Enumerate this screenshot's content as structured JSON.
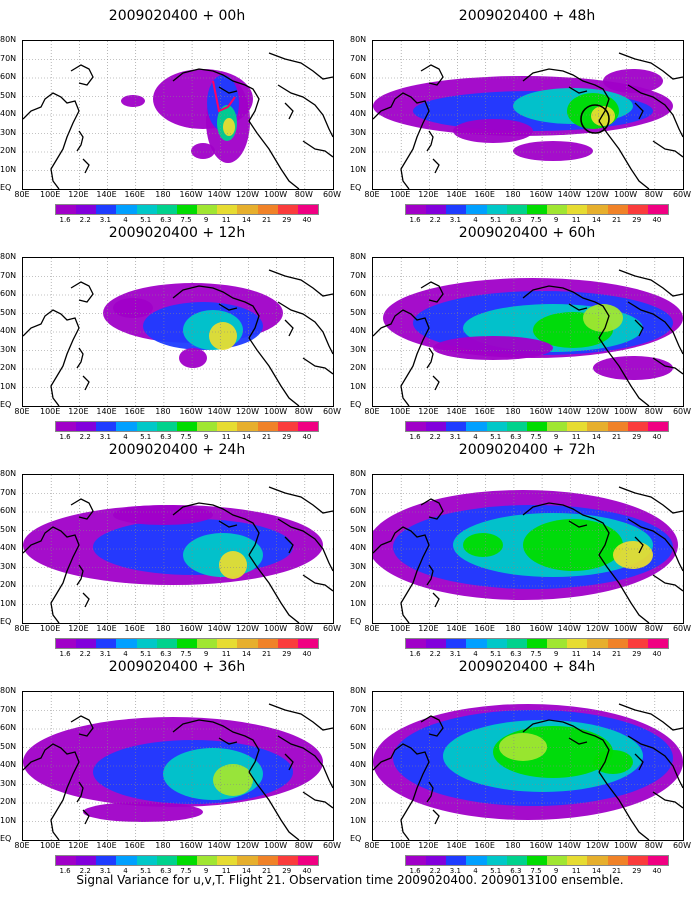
{
  "panels": [
    {
      "title": "2009020400 + 00h"
    },
    {
      "title": "2009020400 + 48h"
    },
    {
      "title": "2009020400 + 12h"
    },
    {
      "title": "2009020400 + 60h"
    },
    {
      "title": "2009020400 + 24h"
    },
    {
      "title": "2009020400 + 72h"
    },
    {
      "title": "2009020400 + 36h"
    },
    {
      "title": "2009020400 + 84h"
    }
  ],
  "lat_labels": [
    "80N",
    "70N",
    "60N",
    "50N",
    "40N",
    "30N",
    "20N",
    "10N",
    "EQ"
  ],
  "lon_labels": [
    "80E",
    "100E",
    "120E",
    "140E",
    "160E",
    "180",
    "160W",
    "140W",
    "120W",
    "100W",
    "80W",
    "60W"
  ],
  "colorbar": {
    "levels": [
      "1.6",
      "2.2",
      "3.1",
      "4",
      "5.1",
      "6.3",
      "7.5",
      "9",
      "11",
      "14",
      "21",
      "29",
      "40"
    ],
    "colors": [
      "#a000c8",
      "#8200dc",
      "#1e3cff",
      "#00a0ff",
      "#00c8c8",
      "#00d28c",
      "#00dc00",
      "#a0e632",
      "#e6dc32",
      "#e6af2d",
      "#f08228",
      "#fa3c3c",
      "#f00082"
    ]
  },
  "footer": "Signal Variance for u,v,T. Flight 21. Observation time 2009020400. 2009013100 ensemble."
}
